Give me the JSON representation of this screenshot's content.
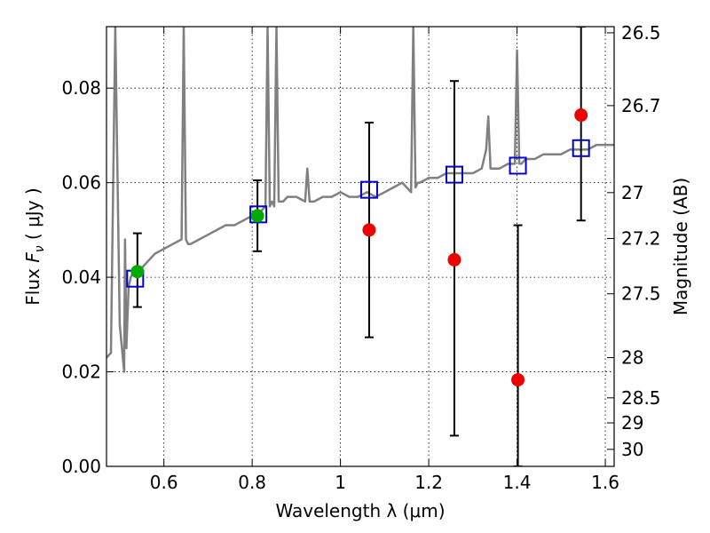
{
  "chart_data": {
    "type": "scatter",
    "xlabel": "Wavelength  λ (μm)",
    "ylabel": "Flux  F_ν  ( μJy )",
    "ylabel_right": "Magnitude (AB)",
    "xlim": [
      0.47,
      1.62
    ],
    "ylim": [
      0.0,
      0.093
    ],
    "grid": true,
    "x_ticks": [
      0.6,
      0.8,
      1.0,
      1.2,
      1.4,
      1.6
    ],
    "x_tick_labels": [
      "0.6",
      "0.8",
      "1",
      "1.2",
      "1.4",
      "1.6"
    ],
    "y_ticks": [
      0.0,
      0.02,
      0.04,
      0.06,
      0.08
    ],
    "y_tick_labels": [
      "0.00",
      "0.02",
      "0.04",
      "0.06",
      "0.08"
    ],
    "right_ticks": [
      {
        "label": "26.5",
        "flux": 0.0917
      },
      {
        "label": "26.7",
        "flux": 0.0763
      },
      {
        "label": "27",
        "flux": 0.0579
      },
      {
        "label": "27.2",
        "flux": 0.0482
      },
      {
        "label": "27.5",
        "flux": 0.0365
      },
      {
        "label": "28",
        "flux": 0.023
      },
      {
        "label": "28.5",
        "flux": 0.0145
      },
      {
        "label": "29",
        "flux": 0.0092
      },
      {
        "label": "30",
        "flux": 0.0036
      }
    ],
    "colors": {
      "spectrum": "#808080",
      "model": "#0000cc",
      "red_points": "#ee0000",
      "green_points": "#00aa00",
      "errorbar": "#000000"
    },
    "series": [
      {
        "kind": "spectrum",
        "x": [
          0.47,
          0.48,
          0.49,
          0.5,
          0.51,
          0.512,
          0.515,
          0.52,
          0.525,
          0.53,
          0.535,
          0.54,
          0.55,
          0.56,
          0.57,
          0.58,
          0.6,
          0.62,
          0.64,
          0.645,
          0.65,
          0.655,
          0.66,
          0.68,
          0.7,
          0.72,
          0.74,
          0.76,
          0.78,
          0.8,
          0.82,
          0.83,
          0.835,
          0.84,
          0.845,
          0.85,
          0.855,
          0.86,
          0.865,
          0.87,
          0.88,
          0.9,
          0.92,
          0.925,
          0.93,
          0.94,
          0.96,
          0.98,
          1.0,
          1.02,
          1.04,
          1.06,
          1.08,
          1.1,
          1.12,
          1.14,
          1.16,
          1.165,
          1.17,
          1.175,
          1.18,
          1.2,
          1.22,
          1.24,
          1.26,
          1.28,
          1.3,
          1.32,
          1.33,
          1.335,
          1.34,
          1.36,
          1.38,
          1.395,
          1.4,
          1.405,
          1.41,
          1.42,
          1.44,
          1.46,
          1.48,
          1.5,
          1.52,
          1.54,
          1.56,
          1.58,
          1.6,
          1.62
        ],
        "y": [
          0.023,
          0.024,
          0.093,
          0.03,
          0.02,
          0.048,
          0.025,
          0.038,
          0.04,
          0.041,
          0.042,
          0.042,
          0.042,
          0.043,
          0.044,
          0.045,
          0.046,
          0.047,
          0.048,
          0.093,
          0.048,
          0.047,
          0.047,
          0.048,
          0.049,
          0.05,
          0.051,
          0.051,
          0.052,
          0.053,
          0.054,
          0.055,
          0.093,
          0.055,
          0.056,
          0.055,
          0.093,
          0.056,
          0.056,
          0.056,
          0.057,
          0.057,
          0.056,
          0.063,
          0.056,
          0.056,
          0.057,
          0.057,
          0.058,
          0.057,
          0.057,
          0.058,
          0.057,
          0.058,
          0.059,
          0.06,
          0.058,
          0.093,
          0.059,
          0.06,
          0.06,
          0.061,
          0.061,
          0.062,
          0.062,
          0.062,
          0.062,
          0.063,
          0.067,
          0.074,
          0.063,
          0.063,
          0.064,
          0.064,
          0.088,
          0.064,
          0.064,
          0.065,
          0.065,
          0.066,
          0.066,
          0.066,
          0.067,
          0.067,
          0.067,
          0.068,
          0.068,
          0.068
        ]
      },
      {
        "kind": "model_squares",
        "x": [
          0.535,
          0.814,
          1.065,
          1.258,
          1.402,
          1.545
        ],
        "y": [
          0.0397,
          0.0533,
          0.0585,
          0.0617,
          0.0636,
          0.0673
        ]
      },
      {
        "kind": "red_points",
        "x": [
          1.065,
          1.258,
          1.402,
          1.545
        ],
        "y": [
          0.05,
          0.0437,
          0.0183,
          0.0743
        ]
      },
      {
        "kind": "green_points",
        "x": [
          0.54,
          0.812
        ],
        "y": [
          0.0412,
          0.053
        ]
      },
      {
        "kind": "errorbars",
        "x": [
          0.54,
          0.812,
          1.065,
          1.258,
          1.402,
          1.545
        ],
        "ylow": [
          0.0337,
          0.0455,
          0.0273,
          0.0065,
          0.0,
          0.052
        ],
        "yhigh": [
          0.0493,
          0.0605,
          0.0727,
          0.0815,
          0.051,
          0.093
        ]
      }
    ]
  }
}
